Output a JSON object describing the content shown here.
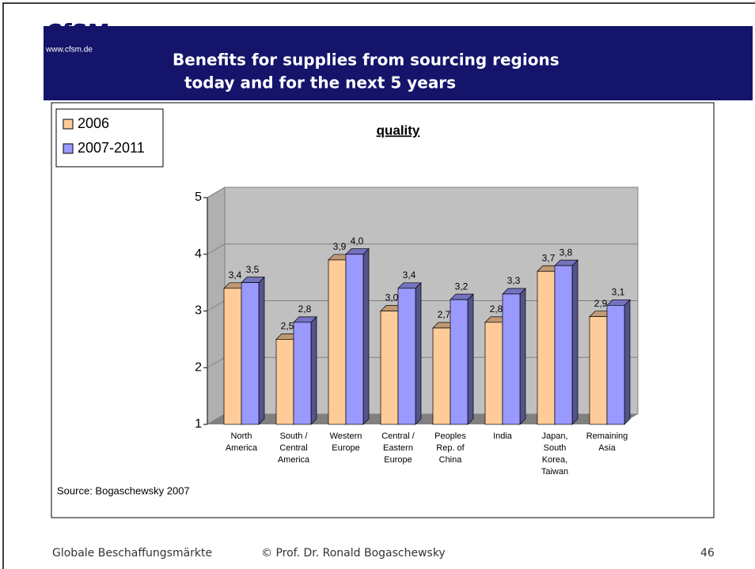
{
  "slide": {
    "logo": "CfSM",
    "url": "www.cfsm.de",
    "title_lines": [
      "Benefits for supplies from sourcing regions",
      "today and for the next 5 years"
    ],
    "footer_left": "Globale Beschaffungsmärkte",
    "footer_center": "© Prof. Dr. Ronald Bogaschewsky",
    "page_number": "46"
  },
  "chart_data": {
    "type": "bar",
    "title": "quality",
    "source": "Source: Bogaschewsky 2007",
    "categories": [
      "North America",
      "South / Central America",
      "Western Europe",
      "Central / Eastern Europe",
      "Peoples Rep. of China",
      "India",
      "Japan, South Korea, Taiwan",
      "Remaining Asia"
    ],
    "series": [
      {
        "name": "2006",
        "color": "#ffcc99",
        "values": [
          3.4,
          2.5,
          3.9,
          3.0,
          2.7,
          2.8,
          3.7,
          2.9
        ],
        "value_labels": [
          "3,4",
          "2,5",
          "3,9",
          "3,0",
          "2,7",
          "2,8",
          "3,7",
          "2,9"
        ]
      },
      {
        "name": "2007-2011",
        "color": "#9999ff",
        "values": [
          3.5,
          2.8,
          4.0,
          3.4,
          3.2,
          3.3,
          3.8,
          3.1
        ],
        "value_labels": [
          "3,5",
          "2,8",
          "4,0",
          "3,4",
          "3,2",
          "3,3",
          "3,8",
          "3,1"
        ]
      }
    ],
    "ylim": [
      1,
      5
    ],
    "yticks": [
      1,
      2,
      3,
      4,
      5
    ],
    "grid": true,
    "legend": "top-left"
  }
}
